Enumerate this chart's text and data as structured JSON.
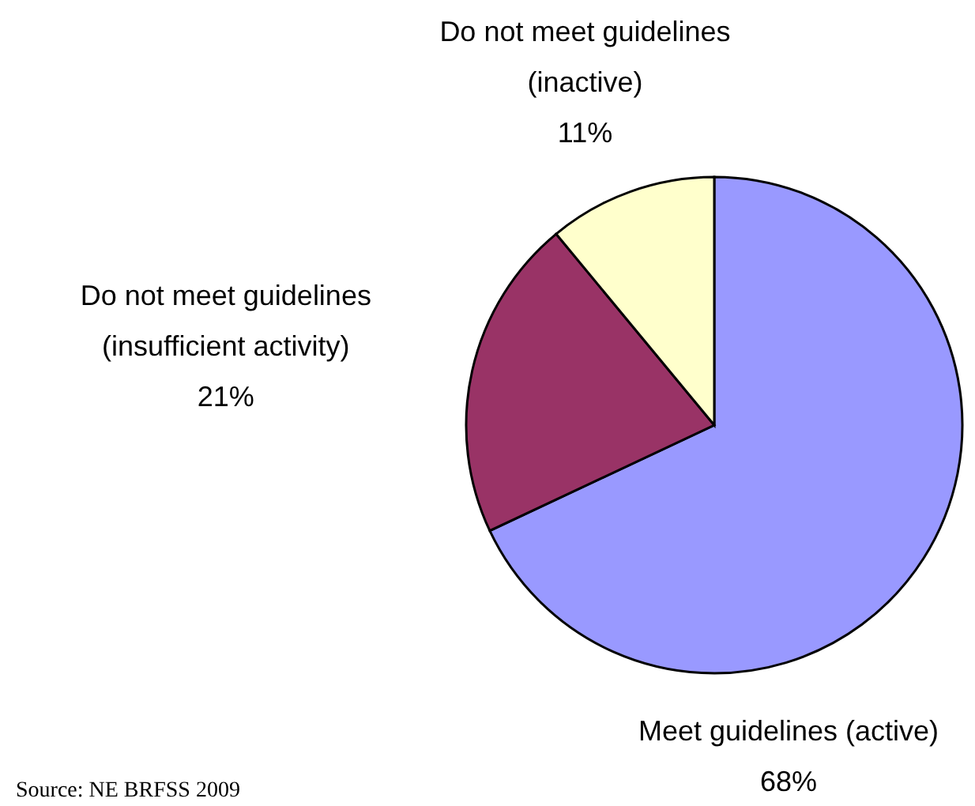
{
  "chart_data": {
    "type": "pie",
    "categories": [
      "Meet guidelines (active)",
      "Do not meet guidelines (insufficient activity)",
      "Do not meet guidelines (inactive)"
    ],
    "values": [
      68,
      21,
      11
    ],
    "value_labels": [
      "68%",
      "21%",
      "11%"
    ],
    "colors": [
      "#9999ff",
      "#993366",
      "#ffffcc"
    ],
    "annotations": [
      "Source: NE BRFSS 2009"
    ]
  }
}
